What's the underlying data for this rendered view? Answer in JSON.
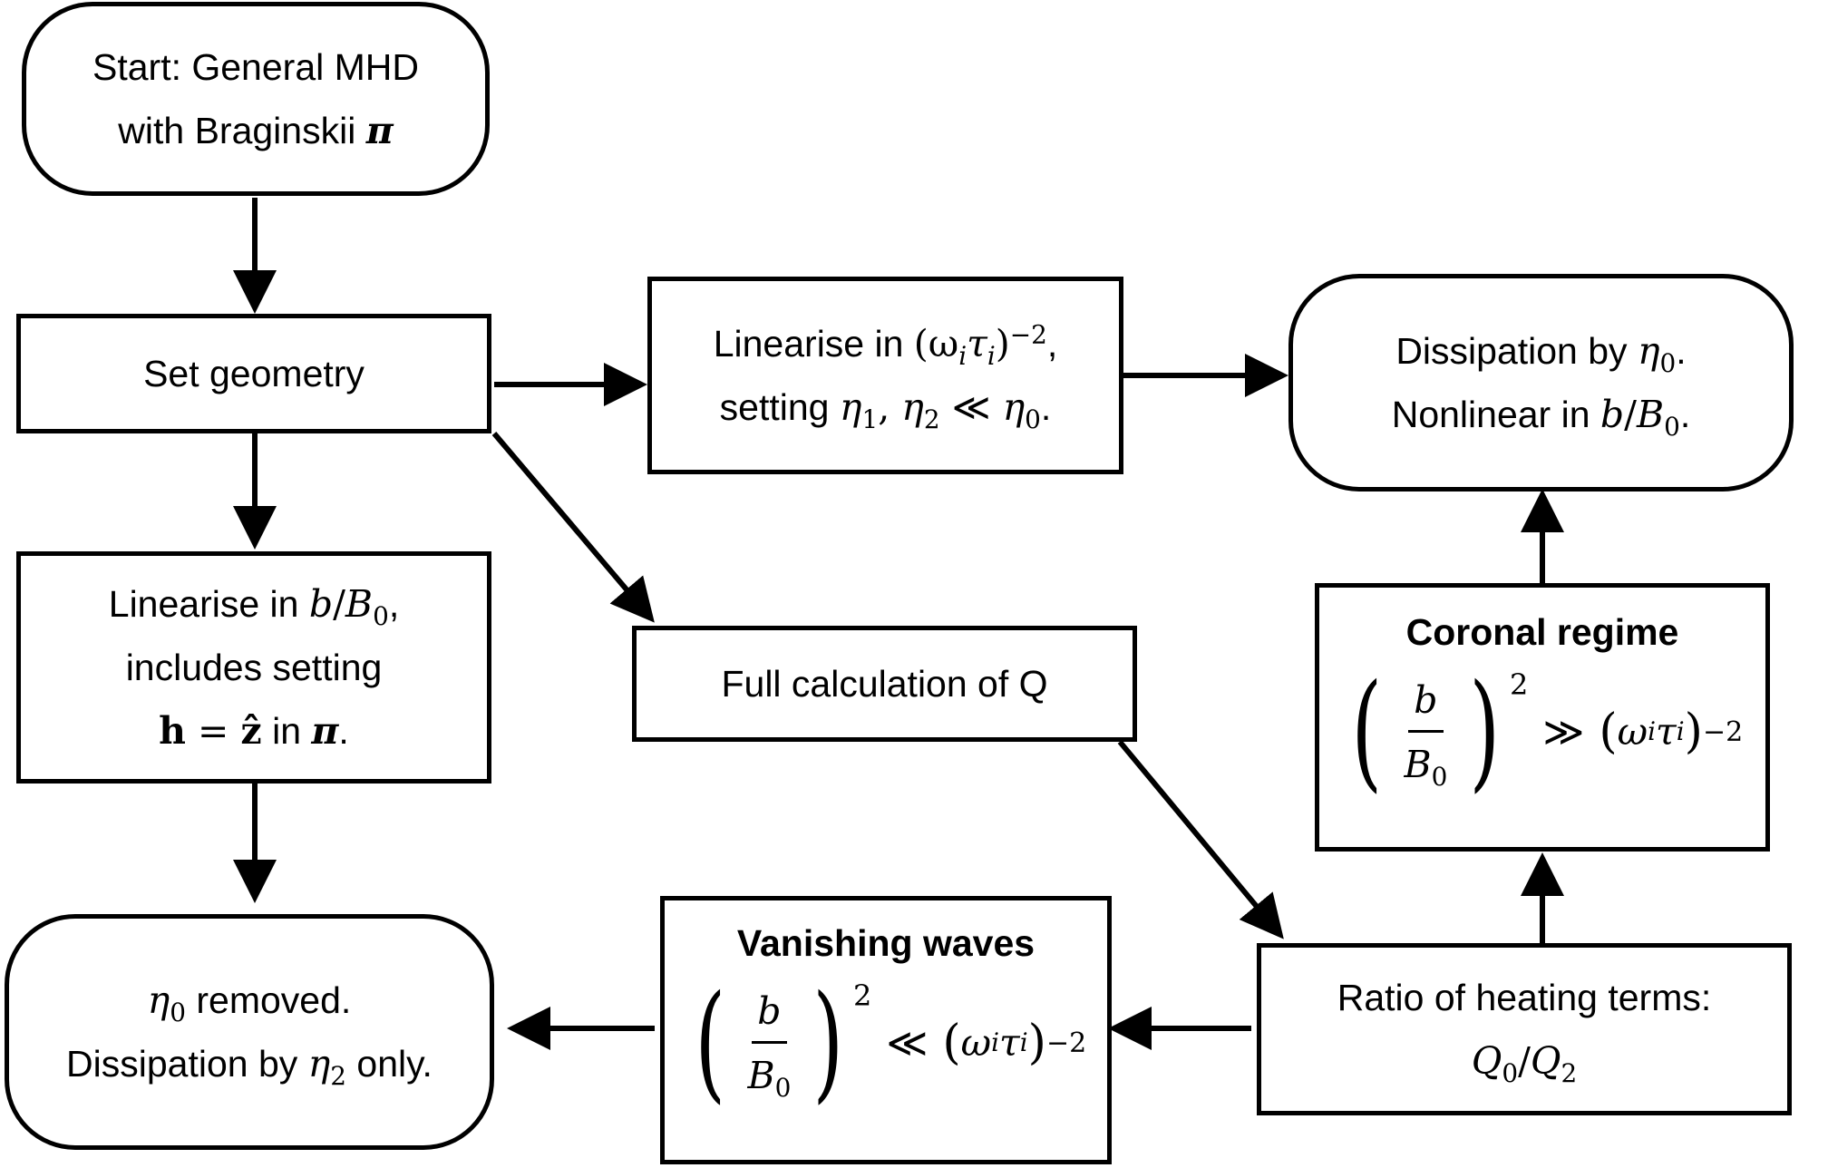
{
  "nodes": {
    "start": {
      "line1": "Start: General MHD",
      "line2_text": "with Braginskii ",
      "line2_symbol": "π"
    },
    "geometry": {
      "label": "Set geometry"
    },
    "linearise_omega": {
      "line1_text": "Linearise in ",
      "line1_expr": "(ω",
      "line1_sub_i": "i",
      "line1_tau": "τ",
      "line1_sub_i2": "i",
      "line1_close": ")",
      "line1_exp": "−2",
      "line1_end": ",",
      "line2_text": "setting ",
      "eta": "η",
      "sub1": "1",
      "sep": ", ",
      "sub2": "2",
      "rel": " ≪ ",
      "sub0": "0",
      "end": "."
    },
    "dissipation_eta0": {
      "line1_text": "Dissipation by ",
      "eta": "η",
      "sub0": "0",
      "line1_end": ".",
      "line2_text": "Nonlinear in ",
      "b": "b",
      "slash": "/",
      "B": "B",
      "B_sub": "0",
      "line2_end": "."
    },
    "linearise_b": {
      "line1_text": "Linearise in ",
      "b": "b",
      "slash": "/",
      "B": "B",
      "B_sub": "0",
      "line1_end": ",",
      "line2": "includes setting",
      "h": "h",
      "eq": " = ",
      "z": "ẑ",
      "line3_mid": " in ",
      "pi": "π",
      "line3_end": "."
    },
    "full_calc": {
      "label": "Full calculation of Q"
    },
    "coronal": {
      "title": "Coronal regime",
      "num": "b",
      "den": "B",
      "den_sub": "0",
      "exp_left": "2",
      "relation": "≫",
      "omega": "ω",
      "sub_i": "i",
      "tau": "τ",
      "exp_right": "−2"
    },
    "eta0_removed": {
      "eta": "η",
      "sub0": "0",
      "line1_end": " removed.",
      "line2_text": "Dissipation by ",
      "sub2": "2",
      "line2_end": " only."
    },
    "vanishing": {
      "title": "Vanishing waves",
      "num": "b",
      "den": "B",
      "den_sub": "0",
      "exp_left": "2",
      "relation": "≪",
      "omega": "ω",
      "sub_i": "i",
      "tau": "τ",
      "exp_right": "−2"
    },
    "ratio": {
      "line1": "Ratio of heating terms:",
      "Q": "Q",
      "sub0": "0",
      "slash": "/",
      "sub2": "2"
    }
  }
}
